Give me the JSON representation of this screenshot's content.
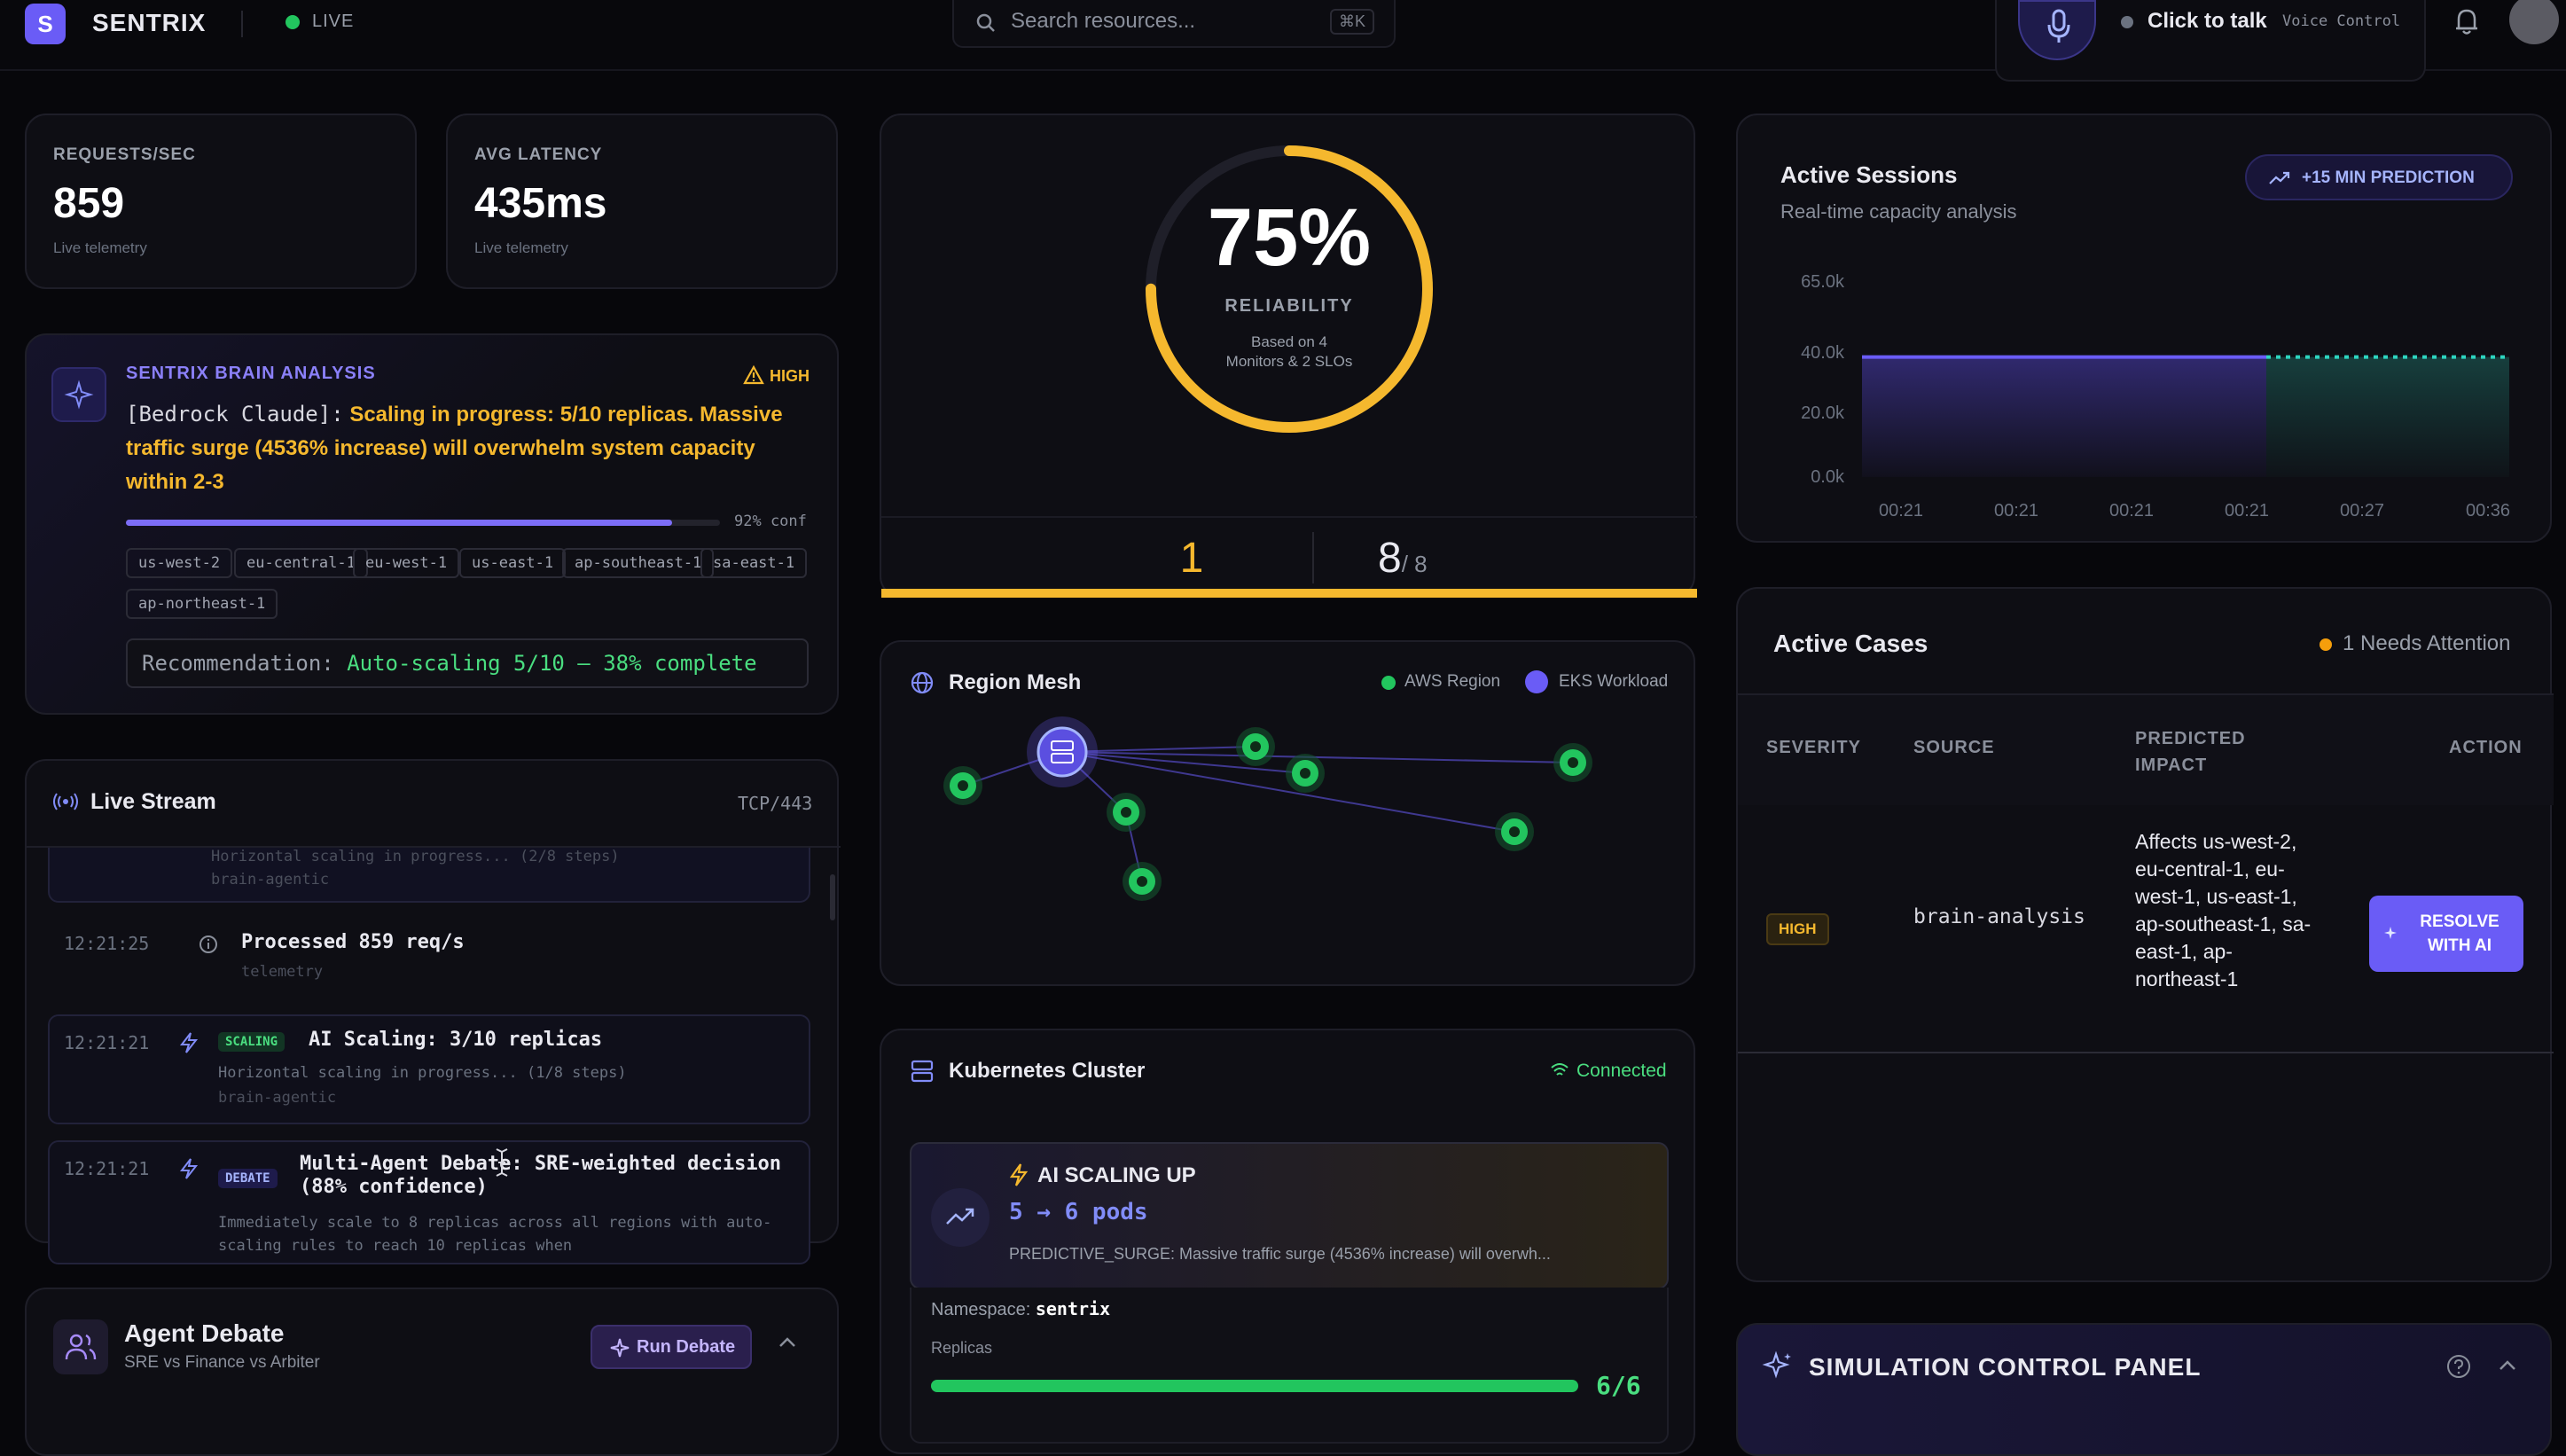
{
  "app": {
    "logo_letter": "S",
    "name": "SENTRIX",
    "status": "LIVE"
  },
  "search": {
    "placeholder": "Search resources...",
    "shortcut": "⌘K"
  },
  "voice": {
    "label": "Click to talk",
    "sub": "Voice Control"
  },
  "stats": [
    {
      "label": "REQUESTS/SEC",
      "value": "859",
      "sub": "Live telemetry"
    },
    {
      "label": "AVG LATENCY",
      "value": "435ms",
      "sub": "Live telemetry"
    }
  ],
  "brain": {
    "title": "SENTRIX BRAIN ANALYSIS",
    "severity": "HIGH",
    "source": "[Bedrock Claude]:",
    "message": "Scaling in progress: 5/10 replicas. Massive traffic surge (4536% increase) will overwhelm system capacity within 2-3",
    "confidence": 0.92,
    "confidence_label": "92% conf",
    "regions": [
      "us-west-2",
      "eu-central-1",
      "eu-west-1",
      "us-east-1",
      "ap-southeast-1",
      "sa-east-1",
      "ap-northeast-1"
    ],
    "recommendation_label": "Recommendation:",
    "recommendation": "Auto-scaling 5/10 — 38% complete"
  },
  "reliability": {
    "percent_value": 0.75,
    "percent": "75%",
    "label": "RELIABILITY",
    "note_line1": "Based on 4",
    "note_line2": "Monitors & 2 SLOs",
    "left_count": "1",
    "right_count": "8",
    "right_total": "/ 8"
  },
  "sessions": {
    "title": "Active Sessions",
    "subtitle": "Real-time capacity analysis",
    "prediction_button": "+15 MIN PREDICTION"
  },
  "chart_data": {
    "type": "area",
    "title": "Active Sessions",
    "subtitle": "Real-time capacity analysis",
    "y_ticks": [
      "65.0k",
      "40.0k",
      "20.0k",
      "0.0k"
    ],
    "ylim": [
      0,
      65000
    ],
    "x_ticks": [
      "00:21",
      "00:21",
      "00:21",
      "00:21",
      "00:27",
      "00:36"
    ],
    "series": [
      {
        "values": [
          40000,
          40000,
          40000,
          40000,
          40000
        ]
      },
      {
        "values": [
          40000,
          40000,
          40000
        ]
      }
    ],
    "grid": false,
    "colors": {
      "actual": "#6a5cf6",
      "predicted": "#2dd4bf"
    }
  },
  "mesh": {
    "title": "Region Mesh",
    "legend": [
      {
        "label": "AWS Region",
        "color": "#22c55e"
      },
      {
        "label": "EKS Workload",
        "color": "#6a5cf6"
      }
    ]
  },
  "stream": {
    "title": "Live Stream",
    "protocol": "TCP/443",
    "items": [
      {
        "time": "",
        "tag": "",
        "title": "",
        "detail": "Horizontal scaling in progress... (2/8 steps)",
        "source": "brain-agentic"
      },
      {
        "time": "12:21:25",
        "tag": "",
        "title": "Processed 859 req/s",
        "detail": "",
        "source": "telemetry"
      },
      {
        "time": "12:21:21",
        "tag": "SCALING",
        "title": "AI Scaling: 3/10 replicas",
        "detail": "Horizontal scaling in progress... (1/8 steps)",
        "source": "brain-agentic"
      },
      {
        "time": "12:21:21",
        "tag": "DEBATE",
        "title": "Multi-Agent Debate: SRE-weighted decision (88% confidence)",
        "detail": "Immediately scale to 8 replicas across all regions with auto-scaling rules to reach 10 replicas when",
        "source": ""
      }
    ]
  },
  "cases": {
    "title": "Active Cases",
    "attention": "1 Needs Attention",
    "columns": [
      "SEVERITY",
      "SOURCE",
      "PREDICTED IMPACT",
      "ACTION"
    ],
    "rows": [
      {
        "severity": "HIGH",
        "source": "brain-analysis",
        "impact": "Affects us-west-2, eu-central-1, eu-west-1, us-east-1, ap-southeast-1, sa-east-1, ap-northeast-1",
        "action": "RESOLVE WITH AI"
      }
    ]
  },
  "k8s": {
    "title": "Kubernetes Cluster",
    "status": "Connected",
    "event_title": "AI SCALING UP",
    "event_pods": "5 → 6 pods",
    "event_detail": "PREDICTIVE_SURGE: Massive traffic surge (4536% increase) will overwh...",
    "namespace_label": "Namespace:",
    "namespace": "sentrix",
    "replicas_label": "Replicas",
    "replicas_value": 1.0,
    "replicas": "6/6"
  },
  "debate": {
    "title": "Agent Debate",
    "subtitle": "SRE vs Finance vs Arbiter",
    "button": "Run Debate"
  },
  "simulation": {
    "title": "SIMULATION CONTROL PANEL"
  }
}
